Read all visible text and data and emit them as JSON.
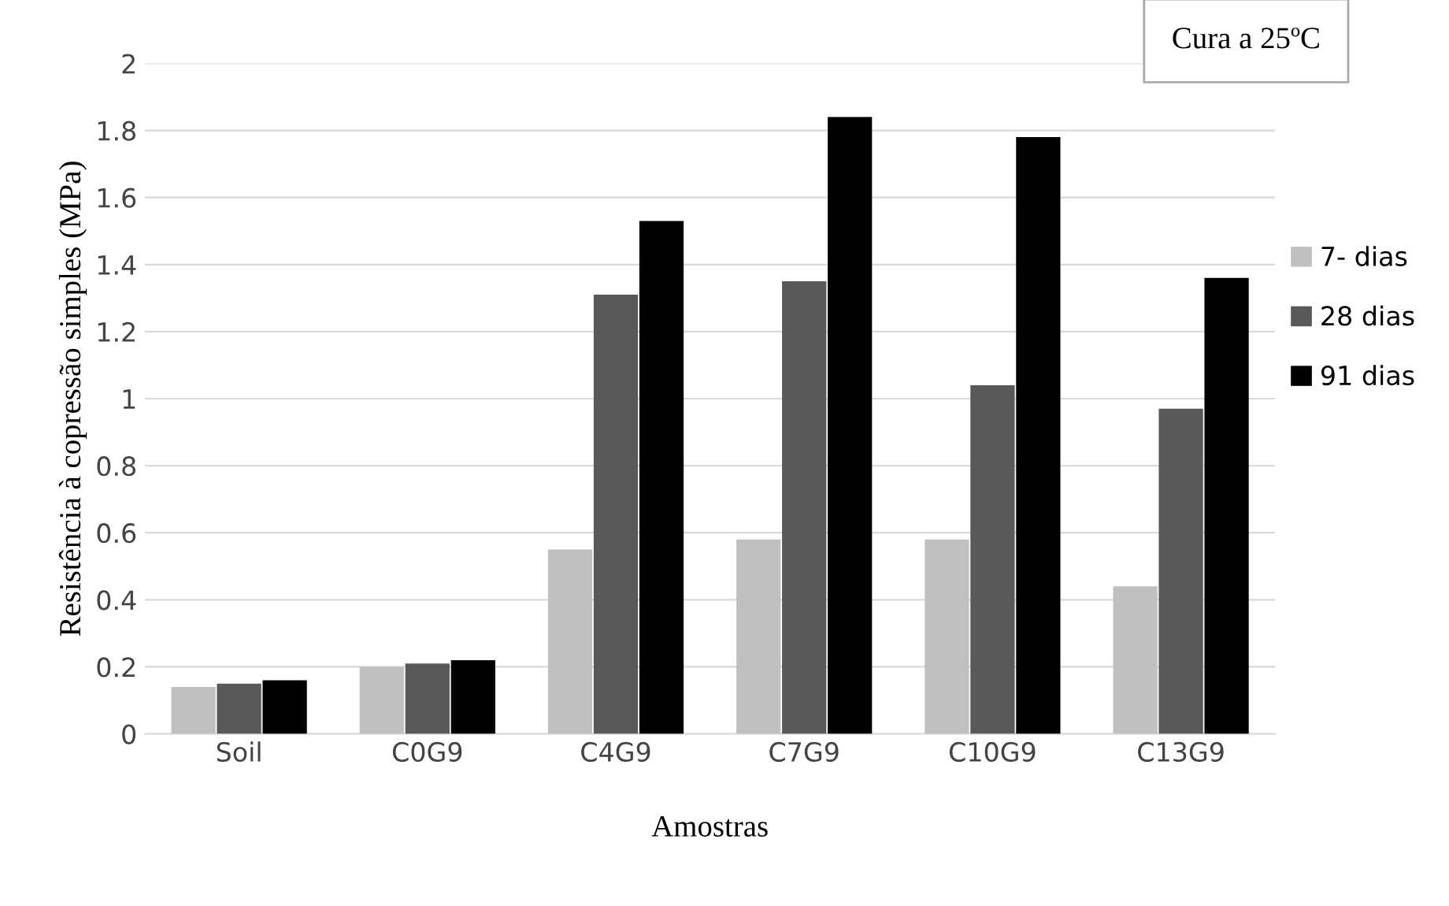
{
  "chart_data": {
    "type": "bar",
    "xlabel": "Amostras",
    "ylabel": "Resistência à copressão simples (MPa)",
    "annotations": [
      "Cura a 25ºC"
    ],
    "categories": [
      "Soil",
      "C0G9",
      "C4G9",
      "C7G9",
      "C10G9",
      "C13G9"
    ],
    "series": [
      {
        "name": "7- dias",
        "color": "#c0c0c0",
        "values": [
          0.14,
          0.2,
          0.55,
          0.58,
          0.58,
          0.44
        ]
      },
      {
        "name": "28 dias",
        "color": "#595959",
        "values": [
          0.15,
          0.21,
          1.31,
          1.35,
          1.04,
          0.97
        ]
      },
      {
        "name": "91 dias",
        "color": "#000000",
        "values": [
          0.16,
          0.22,
          1.53,
          1.84,
          1.78,
          1.36
        ]
      }
    ],
    "ylim": [
      0,
      2
    ],
    "yticks": [
      0,
      {
        "value": 0.2,
        "label": "0.2"
      },
      {
        "value": 0.4,
        "label": "0.4"
      },
      {
        "value": 0.6,
        "label": "0.6"
      },
      {
        "value": 0.8,
        "label": "0.8"
      },
      1,
      {
        "value": 1.2,
        "label": "1.2"
      },
      {
        "value": 1.4,
        "label": "1.4"
      },
      {
        "value": 1.6,
        "label": "1.6"
      },
      {
        "value": 1.8,
        "label": "1.8"
      },
      2
    ],
    "grid": "y",
    "legend": "right"
  }
}
